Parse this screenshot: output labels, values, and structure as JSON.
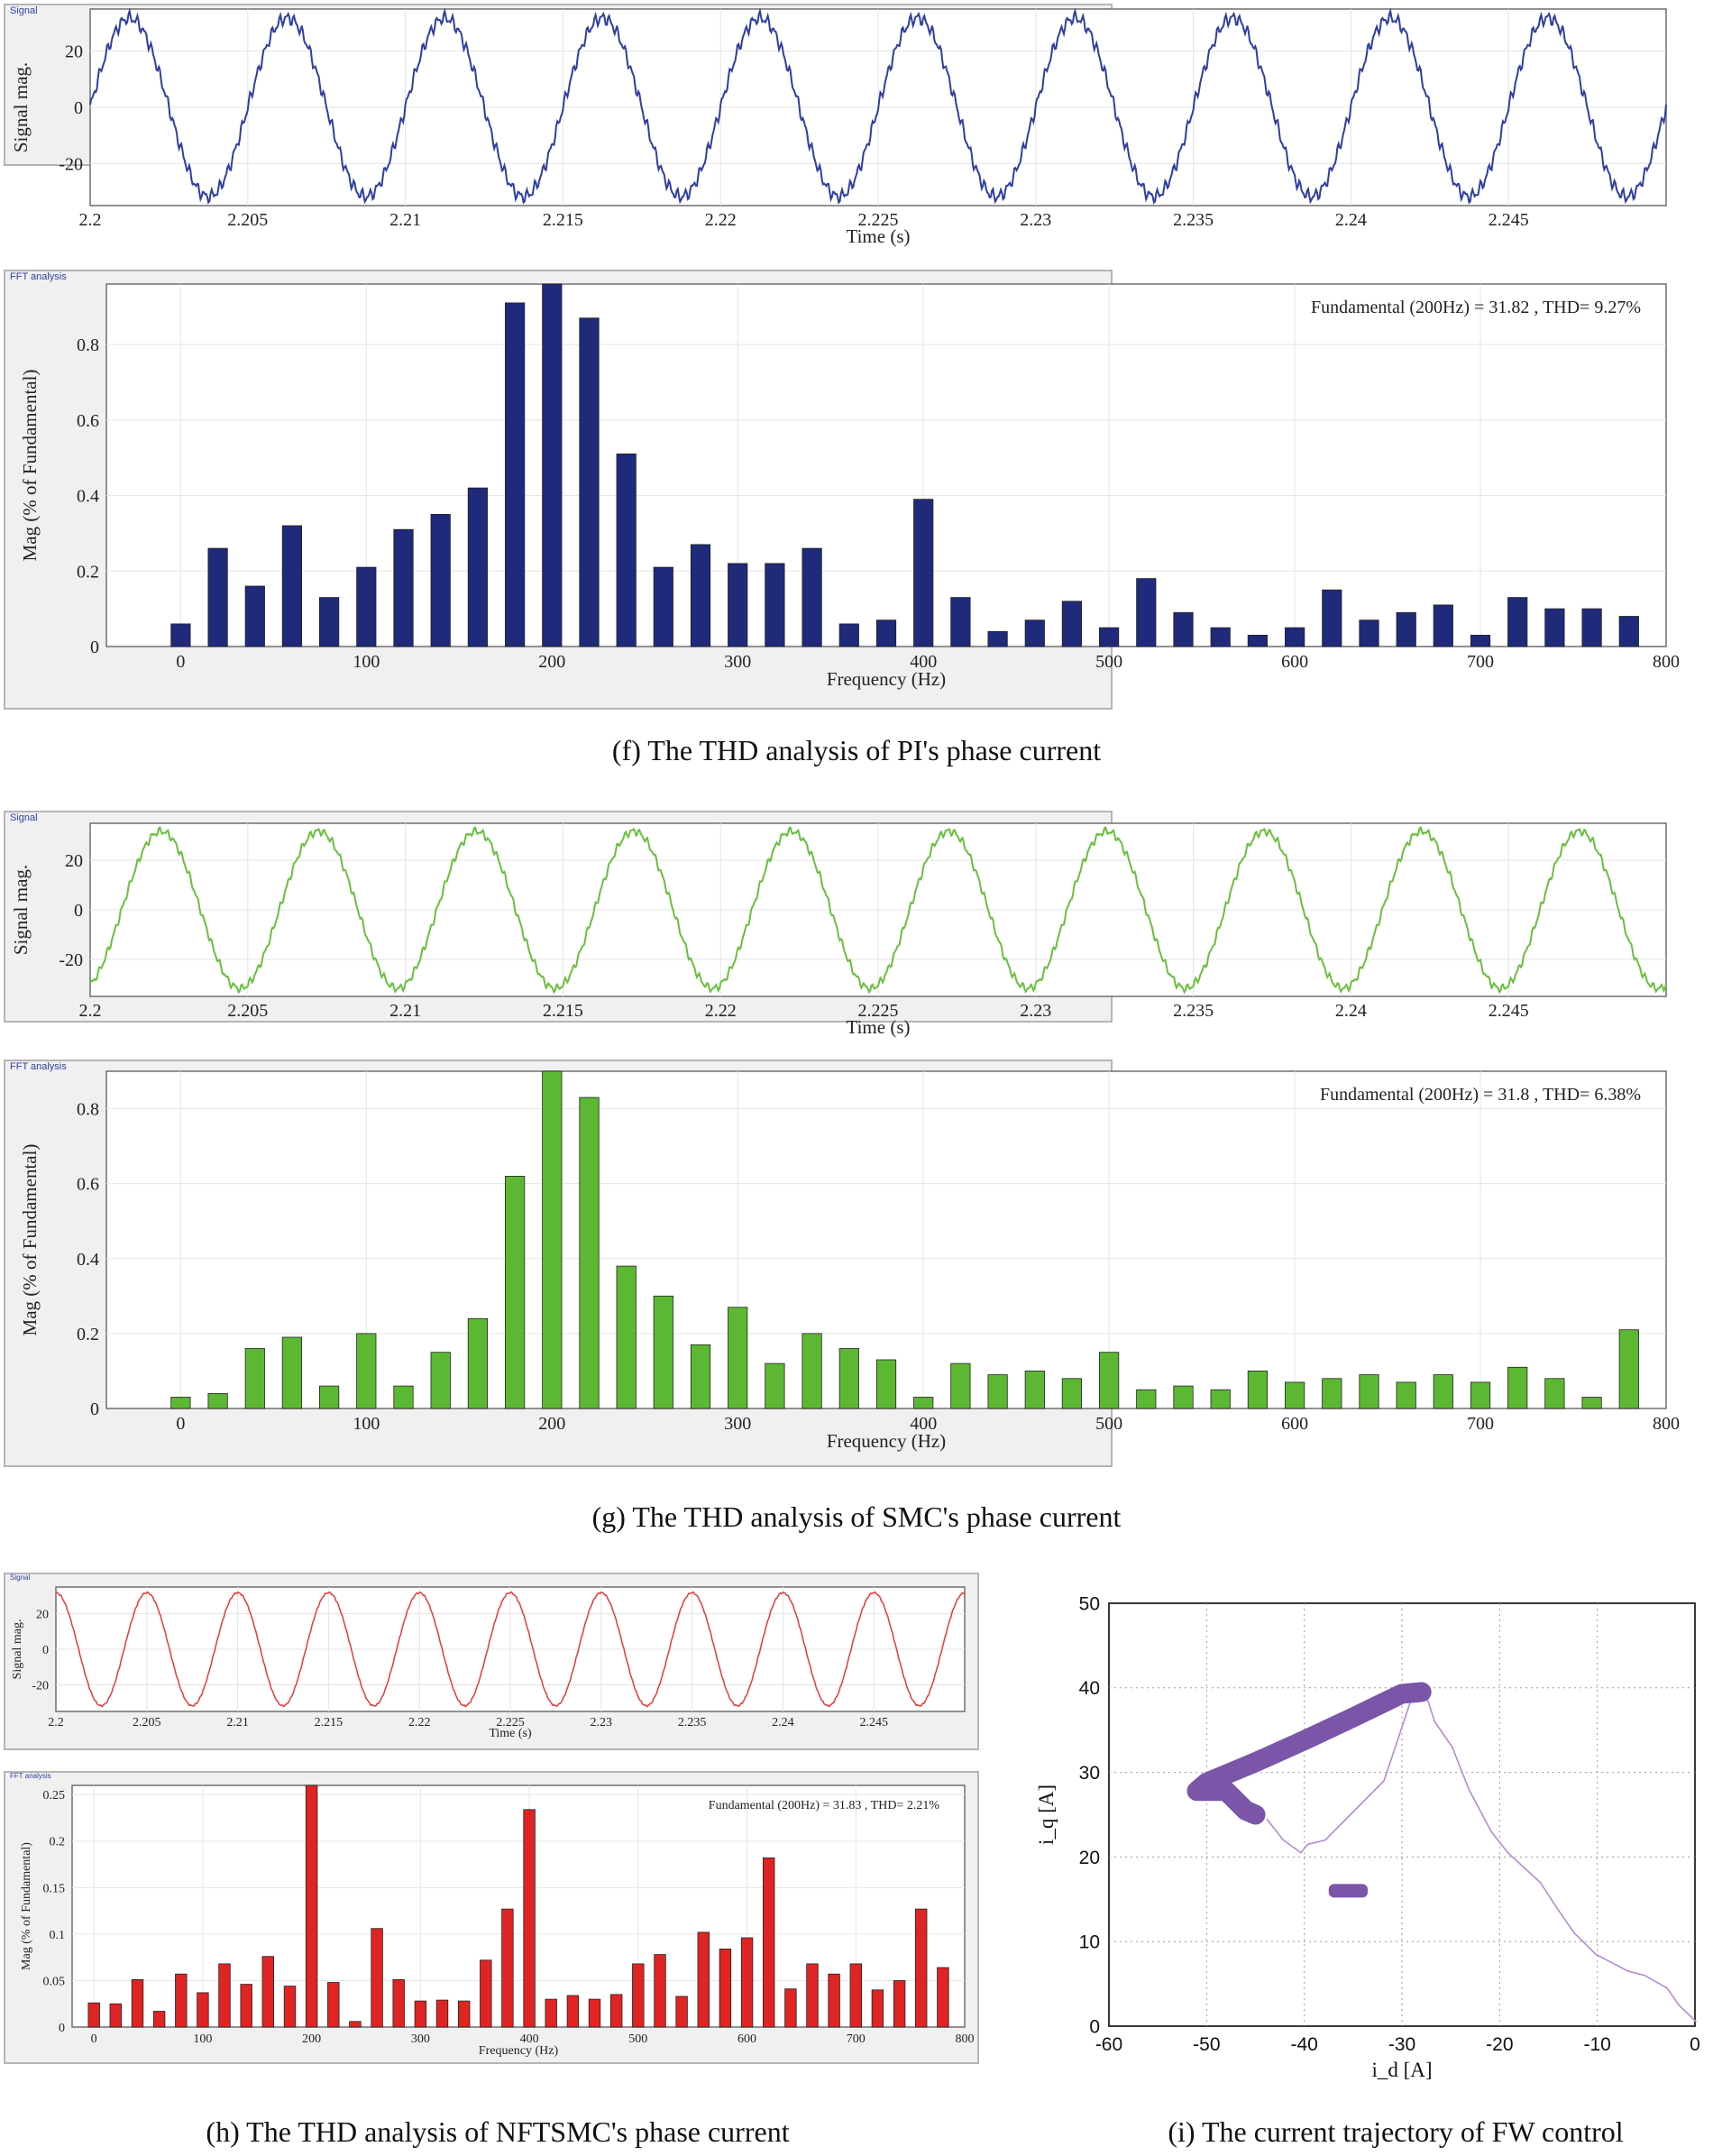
{
  "figure": {
    "captions": {
      "f": "(f) The THD analysis of PI's phase current",
      "g": "(g) The THD analysis of SMC's phase current",
      "h": "(h) The THD analysis of NFTSMC's phase current",
      "i": "(i) The current trajectory of FW control"
    }
  },
  "chart_data": [
    {
      "id": "f-signal",
      "type": "line",
      "panel_label": "Signal",
      "title": "",
      "xlabel": "Time (s)",
      "ylabel": "Signal mag.",
      "xlim": [
        2.2,
        2.25
      ],
      "ylim": [
        -35,
        35
      ],
      "xticks": [
        "2.2",
        "2.205",
        "2.21",
        "2.215",
        "2.22",
        "2.225",
        "2.23",
        "2.235",
        "2.24",
        "2.245"
      ],
      "yticks": [
        "-20",
        "0",
        "20"
      ],
      "series": [
        {
          "name": "phase current",
          "waveform": "sine",
          "amplitude": 31.82,
          "frequency_hz": 200,
          "phase_deg": 0,
          "ripple": 1.6
        }
      ],
      "color": "#2f3f9e"
    },
    {
      "id": "f-fft",
      "type": "bar",
      "panel_label": "FFT analysis",
      "annotation": "Fundamental (200Hz) = 31.82 , THD= 9.27%",
      "xlabel": "Frequency (Hz)",
      "ylabel": "Mag (% of Fundamental)",
      "xlim": [
        -40,
        800
      ],
      "ylim": [
        0,
        0.96
      ],
      "xticks": [
        "0",
        "100",
        "200",
        "300",
        "400",
        "500",
        "600",
        "700",
        "800"
      ],
      "yticks": [
        "0",
        "0.2",
        "0.4",
        "0.6",
        "0.8"
      ],
      "x": [
        0,
        20,
        40,
        60,
        80,
        100,
        120,
        140,
        160,
        180,
        200,
        220,
        240,
        260,
        280,
        300,
        320,
        340,
        360,
        380,
        400,
        420,
        440,
        460,
        480,
        500,
        520,
        540,
        560,
        580,
        600,
        620,
        640,
        660,
        680,
        700,
        720,
        740,
        760,
        780
      ],
      "values": [
        0.06,
        0.26,
        0.16,
        0.32,
        0.13,
        0.21,
        0.31,
        0.35,
        0.42,
        0.91,
        0.96,
        0.87,
        0.51,
        0.21,
        0.27,
        0.22,
        0.22,
        0.26,
        0.06,
        0.07,
        0.39,
        0.13,
        0.04,
        0.07,
        0.12,
        0.05,
        0.18,
        0.09,
        0.05,
        0.03,
        0.05,
        0.15,
        0.07,
        0.09,
        0.11,
        0.03,
        0.13,
        0.1,
        0.1,
        0.08
      ],
      "color": "#1f2a7a"
    },
    {
      "id": "g-signal",
      "type": "line",
      "panel_label": "Signal",
      "xlabel": "Time (s)",
      "ylabel": "Signal mag.",
      "xlim": [
        2.2,
        2.25
      ],
      "ylim": [
        -35,
        35
      ],
      "xticks": [
        "2.2",
        "2.205",
        "2.21",
        "2.215",
        "2.22",
        "2.225",
        "2.23",
        "2.235",
        "2.24",
        "2.245"
      ],
      "yticks": [
        "-20",
        "0",
        "20"
      ],
      "series": [
        {
          "name": "phase current",
          "waveform": "sine",
          "amplitude": 31.8,
          "frequency_hz": 200,
          "phase_deg": -72,
          "ripple": 1.1
        }
      ],
      "color": "#6abf3e"
    },
    {
      "id": "g-fft",
      "type": "bar",
      "panel_label": "FFT analysis",
      "annotation": "Fundamental (200Hz) = 31.8 , THD= 6.38%",
      "xlabel": "Frequency (Hz)",
      "ylabel": "Mag (% of Fundamental)",
      "xlim": [
        -40,
        800
      ],
      "ylim": [
        0,
        0.9
      ],
      "xticks": [
        "0",
        "100",
        "200",
        "300",
        "400",
        "500",
        "600",
        "700",
        "800"
      ],
      "yticks": [
        "0",
        "0.2",
        "0.4",
        "0.6",
        "0.8"
      ],
      "x": [
        0,
        20,
        40,
        60,
        80,
        100,
        120,
        140,
        160,
        180,
        200,
        220,
        240,
        260,
        280,
        300,
        320,
        340,
        360,
        380,
        400,
        420,
        440,
        460,
        480,
        500,
        520,
        540,
        560,
        580,
        600,
        620,
        640,
        660,
        680,
        700,
        720,
        740,
        760,
        780
      ],
      "values": [
        0.03,
        0.04,
        0.16,
        0.19,
        0.06,
        0.2,
        0.06,
        0.15,
        0.24,
        0.62,
        0.9,
        0.83,
        0.38,
        0.3,
        0.17,
        0.27,
        0.12,
        0.2,
        0.16,
        0.13,
        0.03,
        0.12,
        0.09,
        0.1,
        0.08,
        0.15,
        0.05,
        0.06,
        0.05,
        0.1,
        0.07,
        0.08,
        0.09,
        0.07,
        0.09,
        0.07,
        0.11,
        0.08,
        0.03,
        0.21
      ],
      "color": "#5cb832"
    },
    {
      "id": "h-signal",
      "type": "line",
      "panel_label": "Signal",
      "xlabel": "Time (s)",
      "ylabel": "Signal mag.",
      "xlim": [
        2.2,
        2.25
      ],
      "ylim": [
        -35,
        35
      ],
      "xticks": [
        "2.2",
        "2.205",
        "2.21",
        "2.215",
        "2.22",
        "2.225",
        "2.23",
        "2.235",
        "2.24",
        "2.245"
      ],
      "yticks": [
        "-20",
        "0",
        "20"
      ],
      "series": [
        {
          "name": "phase current",
          "waveform": "sine",
          "amplitude": 31.83,
          "frequency_hz": 200,
          "phase_deg": 90,
          "ripple": 0.3
        }
      ],
      "color": "#e23b3b"
    },
    {
      "id": "h-fft",
      "type": "bar",
      "panel_label": "FFT analysis",
      "annotation": "Fundamental (200Hz) = 31.83 , THD= 2.21%",
      "xlabel": "Frequency (Hz)",
      "ylabel": "Mag (% of Fundamental)",
      "xlim": [
        -20,
        800
      ],
      "ylim": [
        0,
        0.26
      ],
      "xticks": [
        "0",
        "100",
        "200",
        "300",
        "400",
        "500",
        "600",
        "700",
        "800"
      ],
      "yticks": [
        "0",
        "0.05",
        "0.1",
        "0.15",
        "0.2",
        "0.25"
      ],
      "x": [
        0,
        20,
        40,
        60,
        80,
        100,
        120,
        140,
        160,
        180,
        200,
        220,
        240,
        260,
        280,
        300,
        320,
        340,
        360,
        380,
        400,
        420,
        440,
        460,
        480,
        500,
        520,
        540,
        560,
        580,
        600,
        620,
        640,
        660,
        680,
        700,
        720,
        740,
        760,
        780
      ],
      "values": [
        0.026,
        0.025,
        0.051,
        0.017,
        0.057,
        0.037,
        0.068,
        0.046,
        0.076,
        0.044,
        0.26,
        0.048,
        0.006,
        0.106,
        0.051,
        0.028,
        0.029,
        0.028,
        0.072,
        0.127,
        0.234,
        0.03,
        0.034,
        0.03,
        0.035,
        0.068,
        0.078,
        0.033,
        0.102,
        0.084,
        0.096,
        0.182,
        0.041,
        0.068,
        0.057,
        0.068,
        0.04,
        0.05,
        0.127,
        0.064
      ],
      "color": "#e02424"
    },
    {
      "id": "i-trajectory",
      "type": "line",
      "xlabel": "i_d [A]",
      "ylabel": "i_q [A]",
      "xlim": [
        -60,
        0
      ],
      "ylim": [
        0,
        50
      ],
      "xticks": [
        "-60",
        "-50",
        "-40",
        "-30",
        "-20",
        "-10",
        "0"
      ],
      "yticks": [
        "0",
        "10",
        "20",
        "30",
        "40",
        "50"
      ],
      "grid": true,
      "thin_path": {
        "x": [
          0,
          -1.5,
          -3,
          -5,
          -7,
          -10,
          -12.5,
          -14,
          -16,
          -19,
          -21,
          -23,
          -25,
          -26.5,
          -27.5,
          -28.5,
          -32,
          -36,
          -38,
          -39.5,
          -40.5,
          -42,
          -44
        ],
        "y": [
          0.5,
          2.5,
          4.5,
          6,
          6.5,
          8.5,
          11,
          14,
          17,
          20.5,
          23,
          28,
          33,
          36,
          38.5,
          40,
          29,
          24,
          22,
          21.5,
          20.5,
          22,
          24.5
        ]
      },
      "thick_band": {
        "x": [
          -28,
          -30,
          -35,
          -40,
          -45,
          -50,
          -51,
          -48,
          -46,
          -45
        ],
        "y": [
          39.5,
          39.3,
          36.5,
          33.8,
          31.2,
          28.8,
          27.8,
          27.8,
          25.5,
          25
        ]
      },
      "cluster": {
        "x_center": -35.5,
        "y_center": 16,
        "half_width": 2,
        "half_height": 0.8
      },
      "color": "#7a55a8"
    }
  ]
}
